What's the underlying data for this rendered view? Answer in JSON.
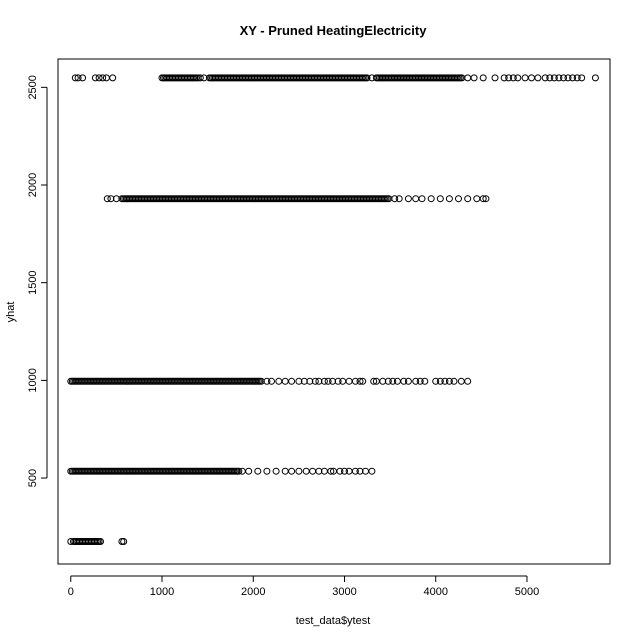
{
  "chart_data": {
    "type": "scatter",
    "title": "XY - Pruned HeatingElectricity",
    "xlabel": "test_data$ytest",
    "ylabel": "yhat",
    "xlim": [
      -140,
      5910
    ],
    "ylim": [
      60,
      2645
    ],
    "x_ticks": [
      0,
      1000,
      2000,
      3000,
      4000,
      5000
    ],
    "y_ticks": [
      500,
      1000,
      1500,
      2000,
      2500
    ],
    "marker": "open-circle",
    "grid": false,
    "legend": "none",
    "series": [
      {
        "levels": [
          {
            "y": 2548,
            "dense_ranges": [
              [
                1000,
                1400
              ],
              [
                1520,
                3250
              ],
              [
                3350,
                4300
              ]
            ],
            "sparse_x": [
              50,
              80,
              130,
              270,
              310,
              350,
              390,
              460,
              1420,
              1460,
              3300,
              4350,
              4420,
              4520,
              4650,
              4750,
              4800,
              4850,
              4900,
              4980,
              5050,
              5120,
              5200,
              5250,
              5300,
              5350,
              5400,
              5450,
              5500,
              5550,
              5600,
              5750
            ]
          },
          {
            "y": 1930,
            "dense_ranges": [
              [
                560,
                3500
              ]
            ],
            "sparse_x": [
              400,
              440,
              500,
              3550,
              3600,
              3700,
              3780,
              3850,
              3950,
              4050,
              4150,
              4250,
              4350,
              4450,
              4520,
              4550
            ]
          },
          {
            "y": 995,
            "dense_ranges": [
              [
                0,
                2100
              ]
            ],
            "sparse_x": [
              2150,
              2200,
              2280,
              2350,
              2420,
              2500,
              2560,
              2620,
              2680,
              2720,
              2780,
              2820,
              2870,
              2930,
              2980,
              3050,
              3120,
              3170,
              3200,
              3320,
              3350,
              3420,
              3480,
              3530,
              3580,
              3650,
              3700,
              3780,
              3830,
              3880,
              4000,
              4050,
              4100,
              4150,
              4200,
              4280,
              4350
            ]
          },
          {
            "y": 535,
            "dense_ranges": [
              [
                0,
                1850
              ]
            ],
            "sparse_x": [
              1880,
              1950,
              2050,
              2150,
              2250,
              2350,
              2420,
              2500,
              2580,
              2650,
              2720,
              2780,
              2850,
              2880,
              2950,
              3000,
              3050,
              3120,
              3170,
              3230,
              3300
            ]
          },
          {
            "y": 175,
            "dense_ranges": [
              [
                30,
                330
              ]
            ],
            "sparse_x": [
              0,
              560,
              580
            ]
          }
        ]
      }
    ]
  }
}
